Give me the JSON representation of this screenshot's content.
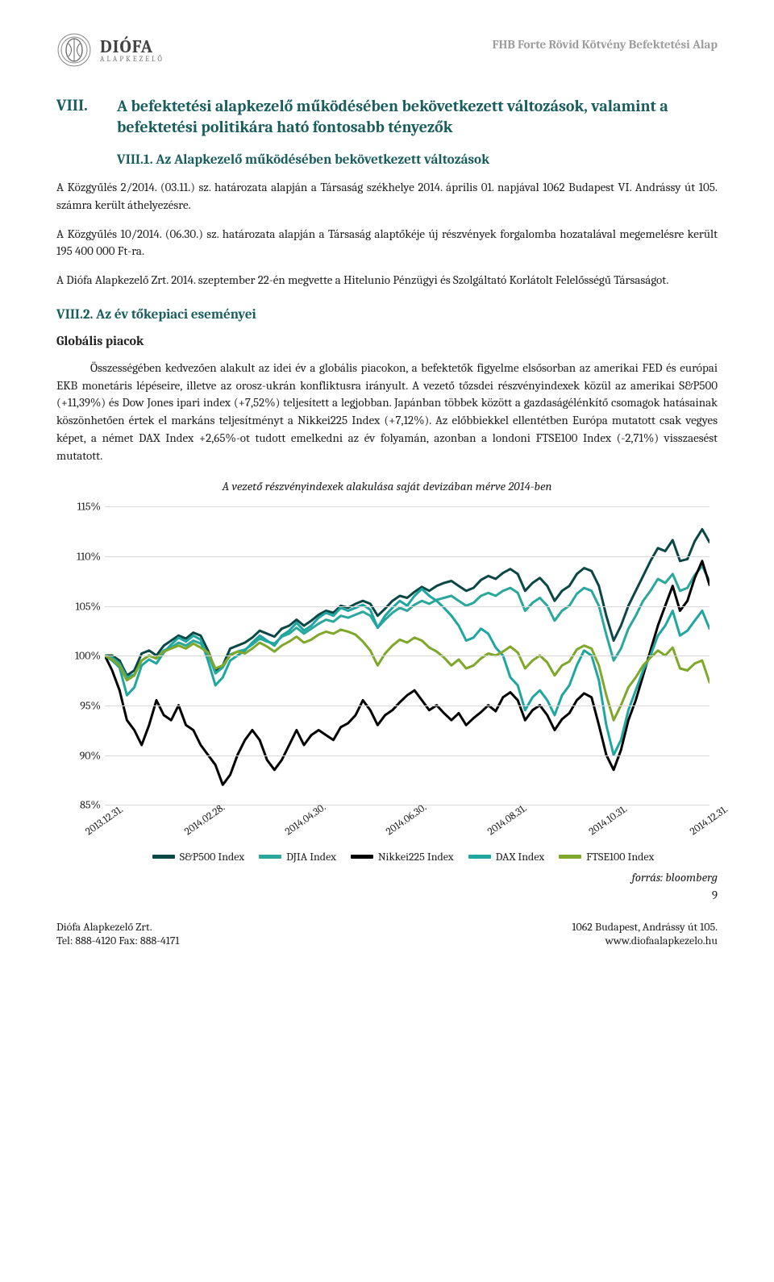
{
  "header": {
    "brand_top": "DIÓFA",
    "brand_bottom": "ALAPKEZELŐ",
    "doc_title": "FHB Forte Rövid Kötvény Befektetési Alap"
  },
  "section": {
    "num": "VIII.",
    "title": "A befektetési alapkezelő működésében bekövetkezett változások, valamint a befektetési politikára ható fontosabb tényezők"
  },
  "sub1": {
    "heading": "VIII.1. Az Alapkezelő működésében bekövetkezett változások",
    "p1": "A Közgyűlés 2/2014. (03.11.) sz. határozata alapján a Társaság székhelye 2014. április 01. napjával 1062 Budapest VI. Andrássy út 105. számra került áthelyezésre.",
    "p2": "A Közgyűlés 10/2014. (06.30.) sz. határozata alapján a Társaság alaptőkéje új részvények forgalomba hozatalával megemelésre került 195 400 000 Ft-ra.",
    "p3": "A Diófa Alapkezelő Zrt. 2014. szeptember 22-én megvette a Hitelunio Pénzügyi és Szolgáltató Korlátolt Felelősségű Társaságot."
  },
  "sub2": {
    "heading": "VIII.2. Az év tőkepiaci eseményei",
    "subhead": "Globális piacok",
    "p1": "Összességében kedvezően alakult az idei év a globális piacokon, a befektetők figyelme elsősorban az amerikai FED és európai EKB monetáris lépéseire, illetve az orosz-ukrán konfliktusra irányult. A vezető tőzsdei részvényindexek közül az amerikai S&P500 (+11,39%) és Dow Jones ipari index (+7,52%) teljesített a legjobban.  Japánban többek között a gazdaságélénkítő csomagok hatásainak köszönhetően értek el markáns teljesítményt a Nikkei225 Index (+7,12%). Az előbbiekkel ellentétben Európa mutatott csak vegyes képet, a német DAX Index +2,65%-ot tudott emelkedni az év folyamán, azonban a londoni FTSE100 Index (-2,71%) visszaesést mutatott."
  },
  "chart": {
    "title": "A vezető részvényindexek alakulása saját devizában mérve 2014-ben",
    "ylim": [
      85,
      115
    ],
    "ytick_step": 5,
    "ylabels": [
      "85%",
      "90%",
      "95%",
      "100%",
      "105%",
      "110%",
      "115%"
    ],
    "xlabels": [
      "2013.12.31.",
      "2014.02.28.",
      "2014.04.30.",
      "2014.06.30.",
      "2014.08.31.",
      "2014.10.31.",
      "2014.12.31."
    ],
    "grid_color": "#d8d8d8",
    "background_color": "#ffffff",
    "series": [
      {
        "name": "S&P500 Index",
        "color": "#0b4745",
        "values": [
          100,
          100,
          99.5,
          98,
          98.5,
          100.2,
          100.5,
          100,
          101,
          101.5,
          102,
          101.7,
          102.3,
          102,
          100.5,
          98.5,
          99,
          100.7,
          101,
          101.3,
          101.8,
          102.5,
          102.2,
          101.9,
          102.7,
          103,
          103.6,
          103,
          103.5,
          104.1,
          104.5,
          104.3,
          105,
          104.8,
          105.2,
          105.5,
          105.2,
          104,
          104.7,
          105.5,
          106,
          105.8,
          106.4,
          106.9,
          106.5,
          107,
          107.3,
          107.5,
          107,
          106.5,
          106.8,
          107.6,
          108,
          107.7,
          108.3,
          108.7,
          108.2,
          106.5,
          107.3,
          107.8,
          107,
          105.5,
          106.5,
          107,
          108.2,
          108.8,
          108.5,
          107,
          104,
          101.5,
          103,
          105,
          106.5,
          108,
          109.5,
          110.8,
          110.5,
          111.6,
          109.5,
          109.7,
          111.5,
          112.7,
          111.4
        ]
      },
      {
        "name": "DJIA Index",
        "color": "#2aa89b",
        "values": [
          100,
          99.8,
          99.2,
          97.8,
          98.1,
          99.5,
          100,
          99.7,
          100.5,
          100.8,
          101.3,
          101,
          101.5,
          101.2,
          100.2,
          98.2,
          98.8,
          100.1,
          100.4,
          100.6,
          101.1,
          101.7,
          101.4,
          101.2,
          101.9,
          102.2,
          102.8,
          102.2,
          102.7,
          103.2,
          103.6,
          103.4,
          104,
          103.8,
          104.1,
          104.4,
          104,
          102.8,
          103.6,
          104.3,
          104.8,
          104.5,
          105.1,
          105.5,
          105.2,
          105.6,
          105.8,
          106,
          105.5,
          105,
          105.3,
          106,
          106.3,
          106,
          106.5,
          106.8,
          106.3,
          104.5,
          105.3,
          105.8,
          105,
          103.5,
          104.5,
          105,
          106.2,
          106.8,
          106.5,
          105,
          102.1,
          99.5,
          100.7,
          102.7,
          104,
          105.5,
          106.5,
          107.7,
          107.3,
          108.2,
          106.5,
          106.8,
          108.1,
          109,
          107.5
        ]
      },
      {
        "name": "Nikkei225 Index",
        "color": "#000000",
        "values": [
          100,
          98.5,
          96.5,
          93.5,
          92.5,
          91,
          93,
          95.5,
          94,
          93.5,
          95,
          93,
          92.5,
          91,
          90,
          89,
          87,
          88,
          90,
          91.5,
          92.5,
          91.5,
          89.5,
          88.5,
          89.5,
          91,
          92.5,
          91,
          92,
          92.5,
          92,
          91.5,
          92.8,
          93.2,
          94,
          95.5,
          94.5,
          93,
          94,
          94.5,
          95.3,
          96,
          96.5,
          95.5,
          94.5,
          95,
          94.2,
          93.5,
          94.2,
          93,
          93.7,
          94.3,
          95,
          94.4,
          95.8,
          96.3,
          95.5,
          93.5,
          94.5,
          95,
          94,
          92.5,
          93.6,
          94.2,
          95.5,
          96.2,
          95.8,
          93,
          90,
          88.5,
          90.5,
          93.5,
          95.5,
          98,
          100.5,
          103,
          105,
          107,
          104.5,
          105.5,
          107.8,
          109.5,
          107.1
        ]
      },
      {
        "name": "DAX Index",
        "color": "#1fa6a0",
        "values": [
          100,
          99.5,
          98.8,
          96,
          96.8,
          99,
          99.6,
          99.2,
          100.3,
          101.1,
          101.8,
          101.4,
          102,
          101.6,
          99.5,
          97,
          97.8,
          99.5,
          100,
          100.5,
          101.3,
          102,
          101.5,
          101,
          102,
          102.5,
          103.3,
          102.5,
          103,
          103.8,
          104.3,
          104,
          104.8,
          104.5,
          104.8,
          105.1,
          104.6,
          102.8,
          104,
          104.8,
          105.5,
          105,
          106,
          106.7,
          106,
          105.5,
          104.8,
          104,
          103,
          101.5,
          101.8,
          102.7,
          102.2,
          100.8,
          100,
          97.8,
          97,
          94.5,
          95.8,
          96.5,
          95.5,
          94,
          96,
          97,
          99,
          100.5,
          100,
          97.5,
          93,
          90,
          91.5,
          94.5,
          96.5,
          98.5,
          100,
          102,
          103,
          104.5,
          102,
          102.5,
          103.5,
          104.5,
          102.7
        ]
      },
      {
        "name": "FTSE100 Index",
        "color": "#7fa82a",
        "values": [
          100,
          99.6,
          99,
          97.5,
          98,
          99.5,
          100,
          99.7,
          100.4,
          100.7,
          101,
          100.7,
          101.2,
          100.8,
          100.3,
          98.7,
          99,
          100,
          100.4,
          100.2,
          100.7,
          101.3,
          100.9,
          100.4,
          101,
          101.4,
          101.9,
          101.3,
          101.6,
          102.1,
          102.4,
          102.2,
          102.6,
          102.4,
          102.1,
          101.4,
          100.5,
          99,
          100.2,
          101,
          101.6,
          101.3,
          101.8,
          101.5,
          100.8,
          100.4,
          99.8,
          99,
          99.6,
          98.7,
          99,
          99.7,
          100.2,
          100,
          100.4,
          100.9,
          100.3,
          98.7,
          99.5,
          100,
          99.3,
          98,
          99,
          99.4,
          100.6,
          101,
          100.7,
          99,
          96,
          93.5,
          95,
          96.8,
          97.8,
          99,
          99.8,
          100.5,
          100,
          100.8,
          98.7,
          98.5,
          99.2,
          99.5,
          97.3
        ]
      }
    ]
  },
  "source": "forrás: bloomberg",
  "pagenum": "9",
  "footer": {
    "left1": "Diófa Alapkezelő Zrt.",
    "left2": "Tel: 888-4120   Fax: 888-4171",
    "right1": "1062 Budapest, Andrássy út 105.",
    "right2": "www.diofaalapkezelo.hu"
  }
}
